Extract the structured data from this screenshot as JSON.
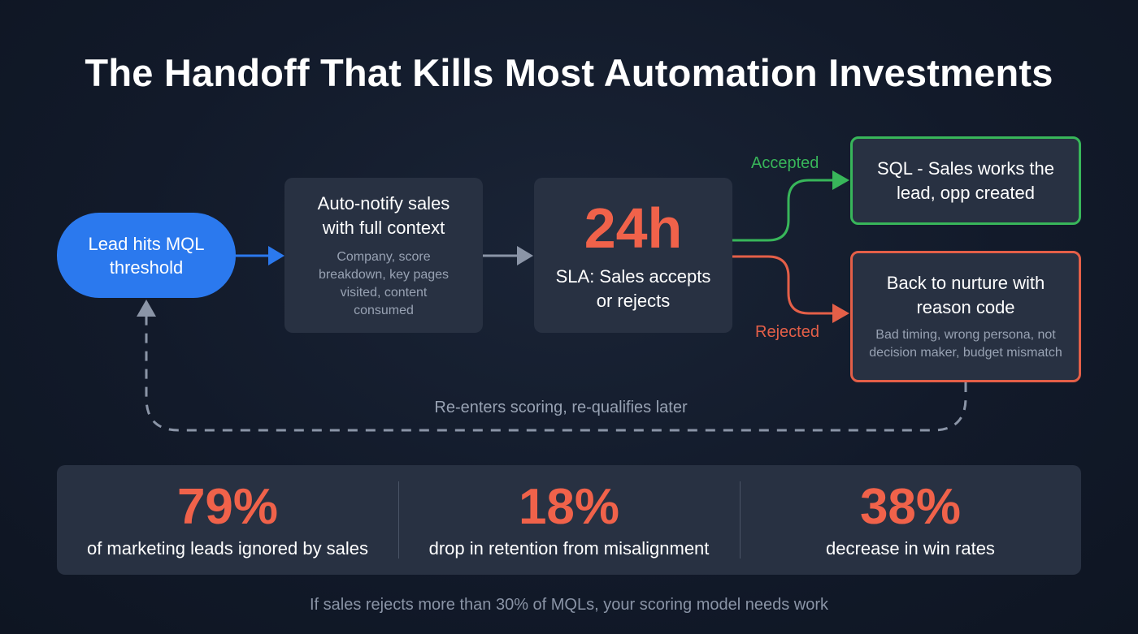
{
  "title": "The Handoff That Kills Most Automation Investments",
  "flow": {
    "start_node": {
      "label": "Lead hits MQL threshold"
    },
    "notify_node": {
      "title": "Auto-notify sales with full context",
      "detail": "Company, score breakdown, key pages visited, content consumed"
    },
    "sla_node": {
      "value": "24h",
      "caption": "SLA: Sales accepts or rejects"
    },
    "branches": {
      "accepted": {
        "label": "Accepted",
        "outcome": "SQL - Sales works the lead, opp created",
        "color": "#38b65a"
      },
      "rejected": {
        "label": "Rejected",
        "outcome": "Back to nurture with reason code",
        "detail": "Bad timing, wrong persona, not decision maker, budget mismatch",
        "color": "#e45f48"
      }
    },
    "loop_label": "Re-enters scoring, re-qualifies later"
  },
  "stats": [
    {
      "value": "79%",
      "label": "of marketing leads ignored by sales"
    },
    {
      "value": "18%",
      "label": "drop in retention from misalignment"
    },
    {
      "value": "38%",
      "label": "decrease in win rates"
    }
  ],
  "footnote": "If sales rejects more than 30% of MQLs, your scoring model needs work",
  "colors": {
    "primary_blue": "#2b79ee",
    "accent_red": "#f0624a",
    "card_bg": "#283142",
    "muted_text": "#98a2b3",
    "connector_gray": "#8b95a7"
  }
}
